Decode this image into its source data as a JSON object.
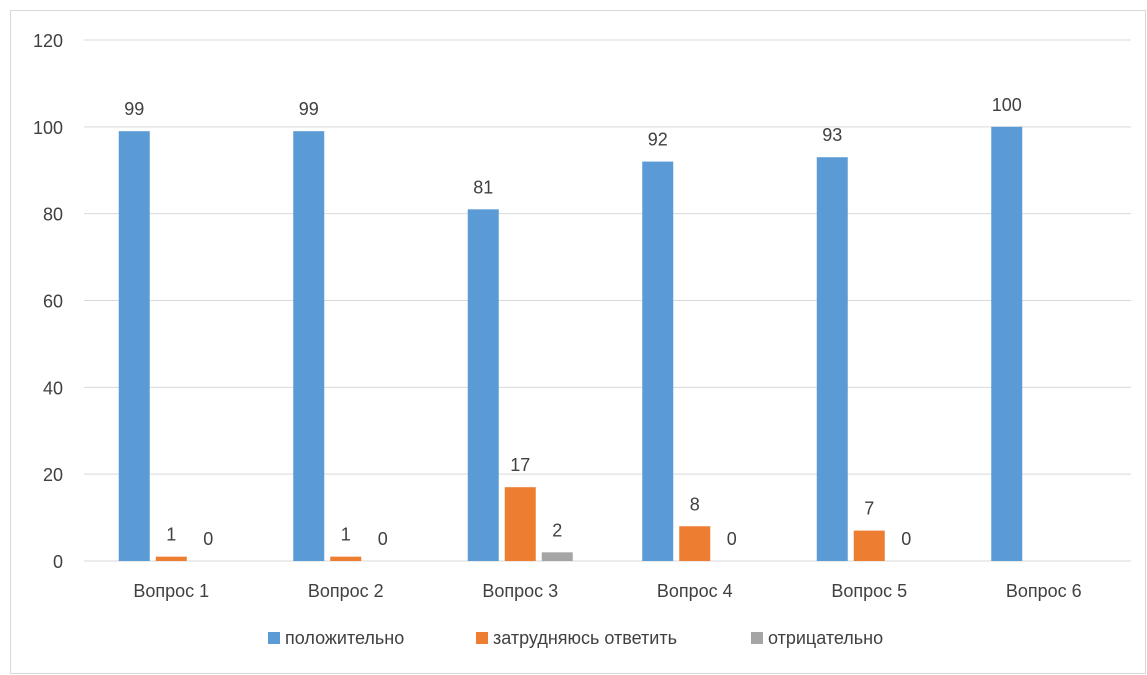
{
  "chart_data": {
    "type": "bar",
    "title": "",
    "xlabel": "",
    "ylabel": "",
    "ylim": [
      0,
      120
    ],
    "yticks": [
      "0",
      "20",
      "40",
      "60",
      "80",
      "100",
      "120"
    ],
    "grid": true,
    "legend_position": "bottom",
    "categories": [
      "Вопрос 1",
      "Вопрос 2",
      "Вопрос 3",
      "Вопрос 4",
      "Вопрос 5",
      "Вопрос 6"
    ],
    "series": [
      {
        "name": "положительно",
        "color": "#5b9bd5",
        "values": [
          99,
          99,
          81,
          92,
          93,
          100
        ],
        "labels": [
          "99",
          "99",
          "81",
          "92",
          "93",
          "100"
        ]
      },
      {
        "name": "затрудняюсь ответить",
        "color": "#ed7d31",
        "values": [
          1,
          1,
          17,
          8,
          7,
          null
        ],
        "labels": [
          "1",
          "1",
          "17",
          "8",
          "7",
          ""
        ]
      },
      {
        "name": "отрицательно",
        "color": "#a5a5a5",
        "values": [
          0,
          0,
          2,
          0,
          0,
          null
        ],
        "labels": [
          "0",
          "0",
          "2",
          "0",
          "0",
          ""
        ]
      }
    ]
  }
}
